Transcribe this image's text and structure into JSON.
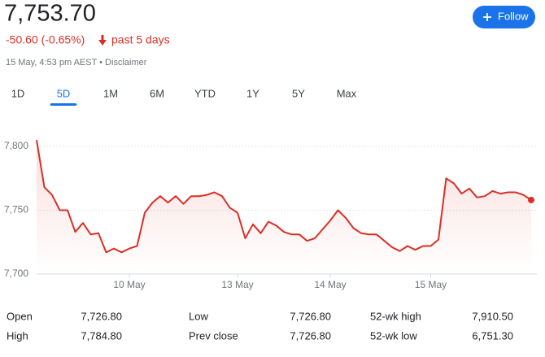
{
  "header": {
    "price": "7,753.70",
    "change": "-50.60 (-0.65%)",
    "period": "past 5 days",
    "timestamp": "15 May, 4:53 pm AEST • Disclaimer",
    "follow": "Follow"
  },
  "tabs": [
    "1D",
    "5D",
    "1M",
    "6M",
    "YTD",
    "1Y",
    "5Y",
    "Max"
  ],
  "selected_tab": 1,
  "chart_data": {
    "type": "line",
    "categories": [
      null,
      null,
      null,
      null,
      null,
      null,
      null,
      null,
      null,
      null,
      null,
      null,
      "10 May",
      null,
      null,
      null,
      null,
      null,
      null,
      null,
      null,
      null,
      null,
      null,
      null,
      null,
      "13 May",
      null,
      null,
      null,
      null,
      null,
      null,
      null,
      null,
      null,
      null,
      null,
      "14 May",
      null,
      null,
      null,
      null,
      null,
      null,
      null,
      null,
      null,
      null,
      null,
      null,
      "15 May",
      null,
      null,
      null,
      null,
      null,
      null,
      null,
      null,
      null,
      null,
      null,
      null,
      null
    ],
    "values": [
      7805,
      7768,
      7762,
      7750,
      7750,
      7733,
      7740,
      7731,
      7732,
      7717,
      7720,
      7717,
      7720,
      7722,
      7748,
      7756,
      7761,
      7756,
      7761,
      7755,
      7761,
      7761,
      7762,
      7764,
      7761,
      7752,
      7748,
      7728,
      7739,
      7732,
      7741,
      7738,
      7733,
      7731,
      7731,
      7726,
      7728,
      7735,
      7742,
      7750,
      7744,
      7736,
      7732,
      7731,
      7731,
      7726,
      7721,
      7718,
      7722,
      7719,
      7722,
      7722,
      7727,
      7775,
      7771,
      7763,
      7767,
      7760,
      7761,
      7765,
      7763,
      7764,
      7764,
      7762,
      7758
    ],
    "color": "#d93025",
    "ylim": [
      7700,
      7810
    ],
    "yticks": [
      {
        "value": 7700,
        "label": "7,700"
      },
      {
        "value": 7750,
        "label": "7,750"
      },
      {
        "value": 7800,
        "label": "7,800"
      }
    ],
    "grid": true
  },
  "stats": [
    [
      {
        "label": "Open",
        "value": "7,726.80"
      },
      {
        "label": "Low",
        "value": "7,726.80"
      },
      {
        "label": "52-wk high",
        "value": "7,910.50"
      }
    ],
    [
      {
        "label": "High",
        "value": "7,784.80"
      },
      {
        "label": "Prev close",
        "value": "7,726.80"
      },
      {
        "label": "52-wk low",
        "value": "6,751.30"
      }
    ]
  ]
}
